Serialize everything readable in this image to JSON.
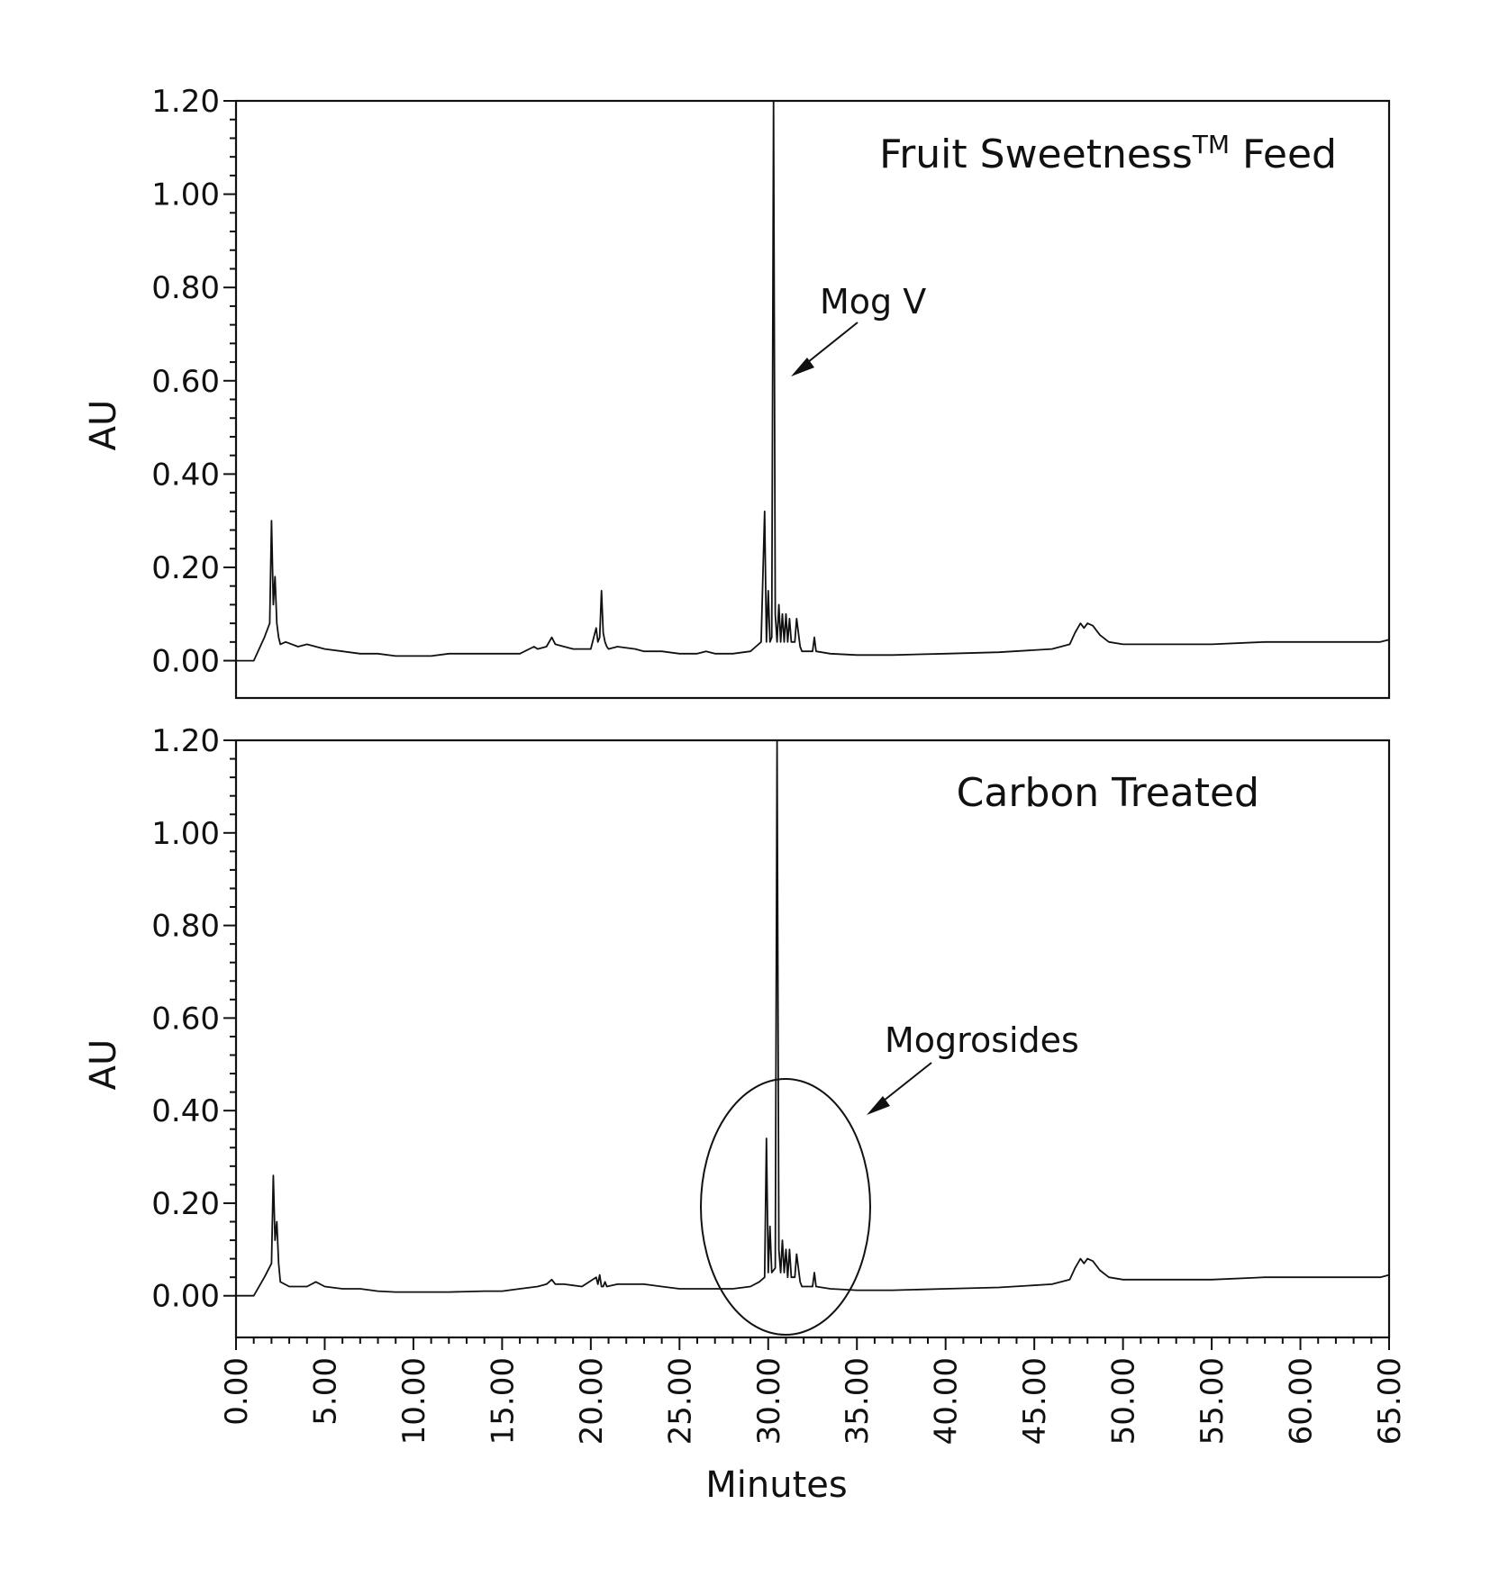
{
  "chart_data": [
    {
      "type": "line",
      "title": "Fruit Sweetness",
      "title_superscript": "TM",
      "title_suffix": " Feed",
      "xlabel": "Minutes",
      "ylabel": "AU",
      "xlim": [
        0,
        65
      ],
      "ylim": [
        -0.08,
        1.2
      ],
      "yticks": [
        "0.00",
        "0.20",
        "0.40",
        "0.60",
        "0.80",
        "1.00",
        "1.20"
      ],
      "grid": false,
      "annotations": [
        {
          "text": "Mog V",
          "points_to": {
            "x": 30.5,
            "y": 0.62
          }
        }
      ],
      "series": [
        {
          "x": [
            0.0,
            1.0,
            1.6,
            1.9,
            2.0,
            2.1,
            2.2,
            2.3,
            2.4,
            2.5,
            2.8,
            3.5,
            4.0,
            4.5,
            5.0,
            6.0,
            7.0,
            8.0,
            9.0,
            10.0,
            11.0,
            12.0,
            13.0,
            14.0,
            15.0,
            16.0,
            16.8,
            17.0,
            17.5,
            17.8,
            18.0,
            18.5,
            19.0,
            20.0,
            20.3,
            20.4,
            20.5,
            20.6,
            20.7,
            20.8,
            20.9,
            21.0,
            21.5,
            22.5,
            23.0,
            24.0,
            25.0,
            26.0,
            26.5,
            27.0,
            28.0,
            29.0,
            29.3,
            29.6,
            29.8,
            29.9,
            30.0,
            30.1,
            30.2,
            30.3,
            30.4,
            30.5,
            30.6,
            30.7,
            30.8,
            30.9,
            31.0,
            31.1,
            31.2,
            31.3,
            31.5,
            31.6,
            31.8,
            31.9,
            32.5,
            32.6,
            32.7,
            33.5,
            35.0,
            37.0,
            40.0,
            43.0,
            46.0,
            47.0,
            47.3,
            47.6,
            47.8,
            48.0,
            48.3,
            48.7,
            49.2,
            50.0,
            52.0,
            55.0,
            58.0,
            61.0,
            63.0,
            64.5,
            65.0
          ],
          "y": [
            0.0,
            0.0,
            0.05,
            0.08,
            0.3,
            0.12,
            0.18,
            0.08,
            0.05,
            0.035,
            0.04,
            0.03,
            0.035,
            0.03,
            0.025,
            0.02,
            0.015,
            0.015,
            0.01,
            0.01,
            0.01,
            0.015,
            0.015,
            0.015,
            0.015,
            0.015,
            0.03,
            0.025,
            0.03,
            0.05,
            0.035,
            0.03,
            0.025,
            0.025,
            0.07,
            0.04,
            0.05,
            0.15,
            0.06,
            0.04,
            0.03,
            0.025,
            0.03,
            0.025,
            0.02,
            0.02,
            0.015,
            0.015,
            0.02,
            0.015,
            0.015,
            0.02,
            0.03,
            0.04,
            0.32,
            0.04,
            0.15,
            0.04,
            0.05,
            1.2,
            0.1,
            0.04,
            0.12,
            0.04,
            0.1,
            0.04,
            0.1,
            0.04,
            0.09,
            0.04,
            0.04,
            0.09,
            0.03,
            0.02,
            0.02,
            0.05,
            0.02,
            0.015,
            0.012,
            0.012,
            0.015,
            0.018,
            0.025,
            0.035,
            0.06,
            0.08,
            0.07,
            0.08,
            0.075,
            0.055,
            0.04,
            0.035,
            0.035,
            0.035,
            0.04,
            0.04,
            0.04,
            0.04,
            0.045
          ]
        }
      ]
    },
    {
      "type": "line",
      "title": "Carbon Treated",
      "xlabel": "Minutes",
      "ylabel": "AU",
      "xlim": [
        0,
        65
      ],
      "ylim": [
        -0.09,
        1.2
      ],
      "yticks": [
        "0.00",
        "0.20",
        "0.40",
        "0.60",
        "0.80",
        "1.00",
        "1.20"
      ],
      "xticks": [
        "0.00",
        "5.00",
        "10.00",
        "15.00",
        "20.00",
        "25.00",
        "30.00",
        "35.00",
        "40.00",
        "45.00",
        "50.00",
        "55.00",
        "60.00",
        "65.00"
      ],
      "grid": false,
      "annotations": [
        {
          "text": "Mogrosides",
          "points_to": {
            "x": 35.0,
            "y": 0.38
          }
        },
        {
          "shape": "ellipse",
          "center": {
            "x": 30.5,
            "y": 0.19
          },
          "half_width_x": 4.8,
          "half_height_y": 0.28
        }
      ],
      "series": [
        {
          "x": [
            0.0,
            1.0,
            1.6,
            2.0,
            2.1,
            2.2,
            2.3,
            2.4,
            2.5,
            3.0,
            4.0,
            4.5,
            5.0,
            6.0,
            7.0,
            8.0,
            9.0,
            10.0,
            12.0,
            14.0,
            15.0,
            16.0,
            17.0,
            17.5,
            17.8,
            18.0,
            18.5,
            19.5,
            20.3,
            20.4,
            20.5,
            20.6,
            20.7,
            20.8,
            20.9,
            21.5,
            22.5,
            23.0,
            24.0,
            25.0,
            26.0,
            27.0,
            28.0,
            29.0,
            29.5,
            29.8,
            29.9,
            30.0,
            30.1,
            30.2,
            30.4,
            30.5,
            30.6,
            30.7,
            30.8,
            30.9,
            31.0,
            31.1,
            31.2,
            31.3,
            31.5,
            31.6,
            31.8,
            31.9,
            32.5,
            32.6,
            32.7,
            33.5,
            35.0,
            37.0,
            40.0,
            43.0,
            46.0,
            47.0,
            47.3,
            47.6,
            47.8,
            48.0,
            48.3,
            48.7,
            49.2,
            50.0,
            52.0,
            55.0,
            58.0,
            61.0,
            63.0,
            64.5,
            65.0
          ],
          "y": [
            0.0,
            0.0,
            0.04,
            0.07,
            0.26,
            0.12,
            0.16,
            0.07,
            0.03,
            0.02,
            0.02,
            0.03,
            0.02,
            0.015,
            0.015,
            0.01,
            0.008,
            0.008,
            0.008,
            0.01,
            0.01,
            0.015,
            0.02,
            0.025,
            0.035,
            0.025,
            0.025,
            0.02,
            0.04,
            0.025,
            0.045,
            0.02,
            0.02,
            0.03,
            0.02,
            0.025,
            0.025,
            0.025,
            0.02,
            0.015,
            0.015,
            0.015,
            0.015,
            0.02,
            0.03,
            0.04,
            0.34,
            0.05,
            0.15,
            0.05,
            0.06,
            1.2,
            0.1,
            0.05,
            0.12,
            0.05,
            0.1,
            0.04,
            0.1,
            0.04,
            0.04,
            0.09,
            0.03,
            0.02,
            0.02,
            0.05,
            0.02,
            0.015,
            0.012,
            0.012,
            0.015,
            0.018,
            0.025,
            0.035,
            0.06,
            0.08,
            0.07,
            0.08,
            0.075,
            0.055,
            0.04,
            0.035,
            0.035,
            0.035,
            0.04,
            0.04,
            0.04,
            0.04,
            0.045
          ]
        }
      ]
    }
  ]
}
